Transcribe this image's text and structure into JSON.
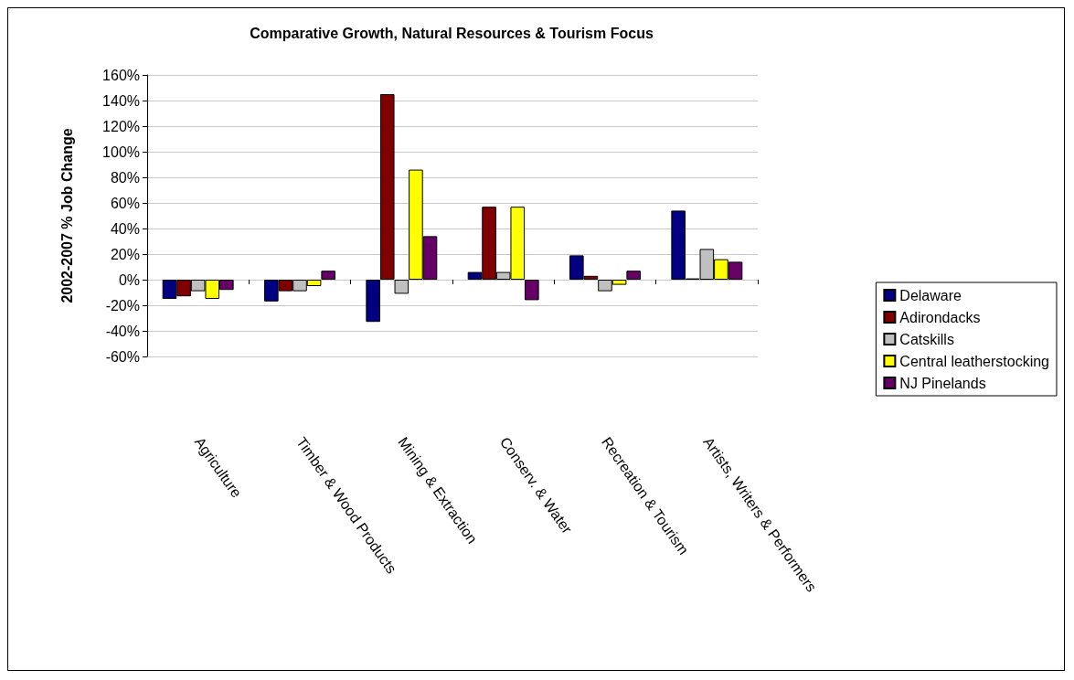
{
  "chart_data": {
    "type": "bar",
    "title": "Comparative Growth, Natural Resources & Tourism Focus",
    "ylabel": "2002-2007 % Job Change",
    "categories": [
      "Agriculture",
      "Timber & Wood Products",
      "Mining & Extraction",
      "Conserv. & Water",
      "Recreation & Tourism",
      "Artists, Writers & Performers"
    ],
    "series": [
      {
        "name": "Delaware",
        "color": "#000080",
        "values": [
          -15,
          -17,
          -33,
          6,
          19,
          54
        ]
      },
      {
        "name": "Adirondacks",
        "color": "#800000",
        "values": [
          -13,
          -9,
          145,
          57,
          3,
          1
        ]
      },
      {
        "name": "Catskills",
        "color": "#c0c0c0",
        "values": [
          -9,
          -9,
          -11,
          6,
          -9,
          24
        ]
      },
      {
        "name": "Central leatherstocking",
        "color": "#ffff00",
        "values": [
          -15,
          -5,
          86,
          57,
          -4,
          16
        ]
      },
      {
        "name": "NJ Pinelands",
        "color": "#660066",
        "values": [
          -8,
          7,
          34,
          -16,
          7,
          14
        ]
      }
    ],
    "ylim": [
      -60,
      160
    ],
    "yticks": [
      {
        "value": -60,
        "label": "-60%"
      },
      {
        "value": -40,
        "label": "-40%"
      },
      {
        "value": -20,
        "label": "-20%"
      },
      {
        "value": 0,
        "label": "0%"
      },
      {
        "value": 20,
        "label": "20%"
      },
      {
        "value": 40,
        "label": "40%"
      },
      {
        "value": 60,
        "label": "60%"
      },
      {
        "value": 80,
        "label": "80%"
      },
      {
        "value": 100,
        "label": "100%"
      },
      {
        "value": 120,
        "label": "120%"
      },
      {
        "value": 140,
        "label": "140%"
      },
      {
        "value": 160,
        "label": "160%"
      }
    ],
    "grid": "y",
    "legend": "right"
  }
}
